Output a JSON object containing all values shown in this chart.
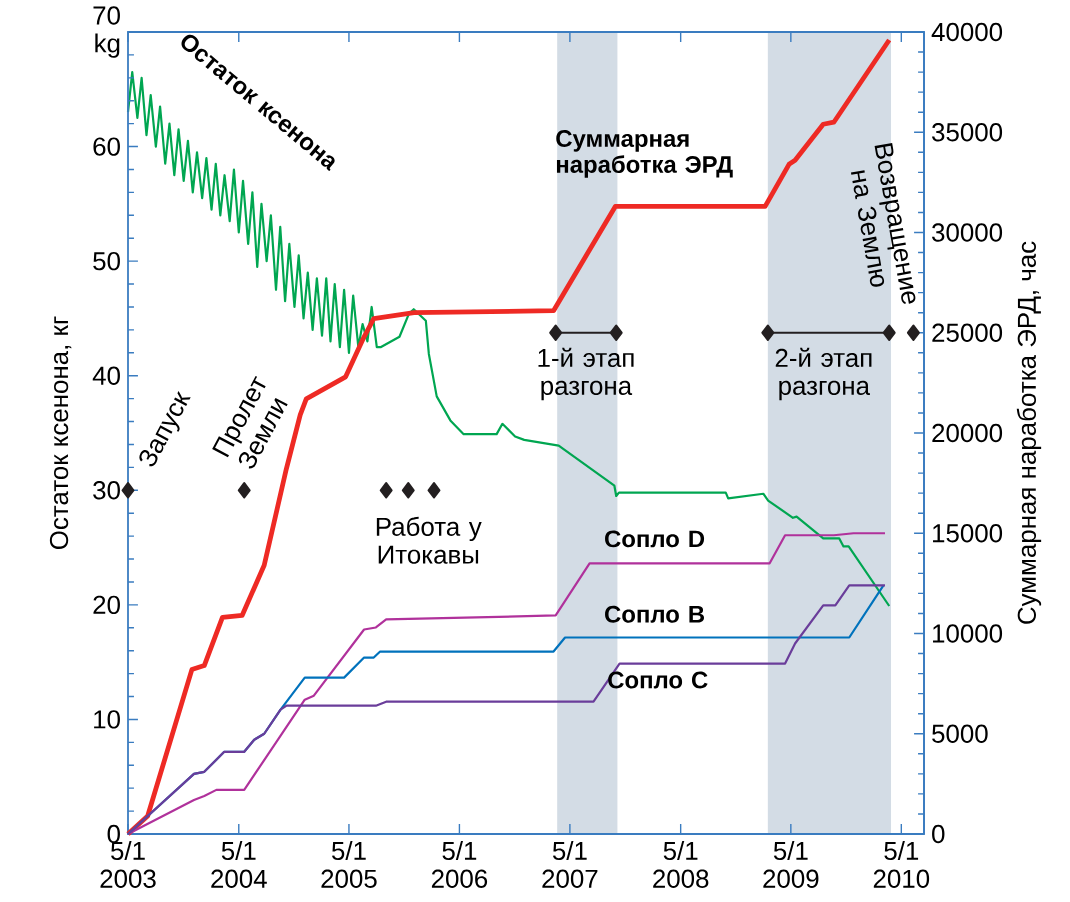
{
  "chart_data": {
    "type": "line",
    "ylabel": "Остаток ксенона, кг",
    "y2label": "Суммарная наработка ЭРД, час",
    "xlim": [
      "2003-05-01",
      "2010-07-15"
    ],
    "xticks": [
      {
        "value": "2003-05-01",
        "label": "5/1 2003"
      },
      {
        "value": "2004-05-01",
        "label": "5/1 2004"
      },
      {
        "value": "2005-05-01",
        "label": "5/1 2005"
      },
      {
        "value": "2006-05-01",
        "label": "5/1 2006"
      },
      {
        "value": "2007-05-01",
        "label": "5/1 2007"
      },
      {
        "value": "2008-05-01",
        "label": "5/1 2008"
      },
      {
        "value": "2009-05-01",
        "label": "5/1 2009"
      },
      {
        "value": "2010-05-01",
        "label": "5/1 2010"
      }
    ],
    "ylim": [
      0,
      70
    ],
    "yticks": [
      0,
      10,
      20,
      30,
      40,
      50,
      60,
      {
        "value": 70,
        "label": "70 kg"
      }
    ],
    "y2lim": [
      0,
      40000
    ],
    "y2ticks": [
      0,
      5000,
      10000,
      15000,
      20000,
      25000,
      30000,
      35000,
      40000
    ],
    "bands": [
      {
        "axis": "x",
        "from": "2007-03-20",
        "to": "2007-10-05",
        "color": "#d3dce5"
      },
      {
        "axis": "x",
        "from": "2009-02-14",
        "to": "2010-03-28",
        "color": "#d3dce5"
      }
    ],
    "series": [
      {
        "name": "Остаток ксенона",
        "color": "#00a651",
        "x": [
          "2003-05-01",
          "2003-05-15",
          "2003-06-01",
          "2003-06-15",
          "2003-07-01",
          "2003-07-15",
          "2003-08-01",
          "2003-08-15",
          "2003-09-01",
          "2003-09-15",
          "2003-10-01",
          "2003-10-15",
          "2003-11-01",
          "2003-11-15",
          "2003-12-01",
          "2003-12-15",
          "2004-01-01",
          "2004-01-15",
          "2004-02-01",
          "2004-02-15",
          "2004-03-01",
          "2004-03-15",
          "2004-04-01",
          "2004-04-15",
          "2004-05-01",
          "2004-05-15",
          "2004-06-01",
          "2004-06-15",
          "2004-07-01",
          "2004-07-15",
          "2004-08-01",
          "2004-08-15",
          "2004-09-01",
          "2004-09-15",
          "2004-10-01",
          "2004-10-15",
          "2004-11-01",
          "2004-11-15",
          "2004-12-01",
          "2004-12-15",
          "2005-01-01",
          "2005-01-15",
          "2005-02-01",
          "2005-02-15",
          "2005-03-01",
          "2005-03-15",
          "2005-04-01",
          "2005-04-15",
          "2005-05-01",
          "2005-05-15",
          "2005-06-01",
          "2005-06-15",
          "2005-07-01",
          "2005-07-15",
          "2005-08-01",
          "2005-08-15",
          "2005-10-15",
          "2005-11-15",
          "2005-12-01",
          "2006-01-10",
          "2006-01-20",
          "2006-02-15",
          "2006-04-01",
          "2006-05-15",
          "2006-09-01",
          "2006-09-20",
          "2006-11-01",
          "2006-12-01",
          "2007-03-25",
          "2007-09-25",
          "2007-10-01",
          "2007-10-10",
          "2008-09-27",
          "2008-10-05",
          "2009-01-30",
          "2009-02-15",
          "2009-05-08",
          "2009-05-20",
          "2009-08-16",
          "2009-10-08",
          "2009-10-22",
          "2009-11-08",
          "2010-03-22"
        ],
        "values": [
          63,
          66.5,
          62.5,
          66,
          61,
          64.5,
          60,
          63.5,
          58.5,
          62,
          57.5,
          61.5,
          57,
          60.5,
          56,
          59.5,
          55.5,
          59,
          54.5,
          58.5,
          54,
          57.5,
          53.5,
          58,
          52.5,
          57,
          51.5,
          56,
          49.5,
          55,
          50,
          54,
          47.5,
          53,
          46.5,
          51.5,
          46,
          50.5,
          45,
          49,
          44,
          48.5,
          43.5,
          48.5,
          43,
          48,
          42.5,
          47.5,
          42,
          47,
          42.5,
          44.5,
          43,
          46,
          42.5,
          42.5,
          43.4,
          45.4,
          45.8,
          44.8,
          41.9,
          38.2,
          36.1,
          34.9,
          34.9,
          35.8,
          34.7,
          34.4,
          33.9,
          30.4,
          29.5,
          29.8,
          29.8,
          29.3,
          29.7,
          29.1,
          27.6,
          27.7,
          25.8,
          25.8,
          25.1,
          25.1,
          19.9
        ]
      },
      {
        "name": "Суммарная наработка ЭРД",
        "color": "#ee2a24",
        "axis": "y2",
        "x": [
          "2003-05-01",
          "2003-07-05",
          "2003-11-28",
          "2004-01-08",
          "2004-03-08",
          "2004-05-12",
          "2004-07-24",
          "2004-10-05",
          "2004-11-20",
          "2004-12-10",
          "2005-04-20",
          "2005-06-20",
          "2005-07-22",
          "2005-12-02",
          "2007-03-08",
          "2007-09-28",
          "2009-02-05",
          "2009-04-25",
          "2009-05-15",
          "2009-08-16",
          "2009-09-20",
          "2010-03-22"
        ],
        "values": [
          0,
          900,
          8200,
          8400,
          10800,
          10900,
          13400,
          18200,
          20900,
          21700,
          22800,
          24800,
          25700,
          26000,
          26100,
          31300,
          31300,
          33400,
          33600,
          35400,
          35500,
          39600
        ]
      },
      {
        "name": "Сопло D",
        "color": "#b0319b",
        "axis": "y2",
        "x": [
          "2003-05-01",
          "2003-12-05",
          "2004-01-08",
          "2004-02-17",
          "2004-05-19",
          "2004-12-05",
          "2005-01-05",
          "2005-06-20",
          "2005-07-29",
          "2005-09-01",
          "2007-03-15",
          "2007-07-05",
          "2009-02-20",
          "2009-04-12",
          "2009-09-20",
          "2009-11-24",
          "2010-03-08"
        ],
        "values": [
          0,
          1700,
          1900,
          2200,
          2200,
          6700,
          6900,
          10200,
          10300,
          10700,
          10900,
          13500,
          13500,
          14900,
          14900,
          15000,
          15000
        ]
      },
      {
        "name": "Сопло B",
        "color": "#0072bc",
        "axis": "y2",
        "x": [
          "2003-05-01",
          "2003-12-05",
          "2004-01-08",
          "2004-03-14",
          "2004-05-19",
          "2004-06-21",
          "2004-07-24",
          "2004-09-16",
          "2004-12-05",
          "2005-04-15",
          "2005-06-20",
          "2005-07-22",
          "2005-08-12",
          "2007-03-08",
          "2007-04-15",
          "2009-11-10",
          "2010-03-03"
        ],
        "values": [
          0,
          3000,
          3100,
          4100,
          4100,
          4700,
          5000,
          6200,
          7800,
          7800,
          8800,
          8800,
          9100,
          9100,
          9800,
          9800,
          12400
        ]
      },
      {
        "name": "Сопло C",
        "color": "#6a3d9a",
        "axis": "y2",
        "x": [
          "2003-05-01",
          "2003-12-05",
          "2004-01-08",
          "2004-03-14",
          "2004-05-19",
          "2004-06-21",
          "2004-07-24",
          "2004-09-16",
          "2004-10-06",
          "2005-07-29",
          "2005-09-01",
          "2007-07-18",
          "2007-10-12",
          "2009-04-12",
          "2009-05-15",
          "2009-08-16",
          "2009-09-25",
          "2009-11-10",
          "2010-03-08"
        ],
        "values": [
          0,
          3000,
          3100,
          4100,
          4100,
          4700,
          5000,
          6200,
          6400,
          6400,
          6600,
          6600,
          8500,
          8500,
          9500,
          11400,
          11400,
          12400,
          12400
        ]
      },
      {
        "type": "scatter",
        "marker": "diamond",
        "color": "#231f20",
        "x": [
          "2003-05-01",
          "2004-05-19",
          "2005-09-01",
          "2005-11-13",
          "2006-02-06"
        ],
        "values": [
          30,
          30,
          30,
          30,
          30
        ]
      },
      {
        "marker": "diamond",
        "color": "#231f20",
        "axis": "y2",
        "x": [
          "2007-03-15",
          "2007-10-01"
        ],
        "values": [
          25000,
          25000
        ]
      },
      {
        "marker": "diamond",
        "color": "#231f20",
        "axis": "y2",
        "x": [
          "2009-02-14",
          "2010-03-22"
        ],
        "values": [
          25000,
          25000
        ]
      },
      {
        "type": "scatter",
        "marker": "diamond",
        "color": "#231f20",
        "axis": "y2",
        "x": [
          "2010-06-10"
        ],
        "values": [
          25000
        ]
      }
    ],
    "annotations": [
      {
        "text": "Запуск",
        "x": "2003-05-01",
        "y": 30
      },
      {
        "text": "Пролет Земли",
        "x": "2004-05-19",
        "y": 30
      },
      {
        "text": "Работа у Итокавы",
        "x": "2005-11-13",
        "y": 30
      },
      {
        "text": "1-й этап разгона",
        "x": "2007-06-23",
        "y": 44
      },
      {
        "text": "2-й этап разгона",
        "x": "2009-08-18",
        "y": 44
      },
      {
        "text": "Возвращение на Землю",
        "x": "2010-06-10",
        "y": 44
      }
    ]
  }
}
